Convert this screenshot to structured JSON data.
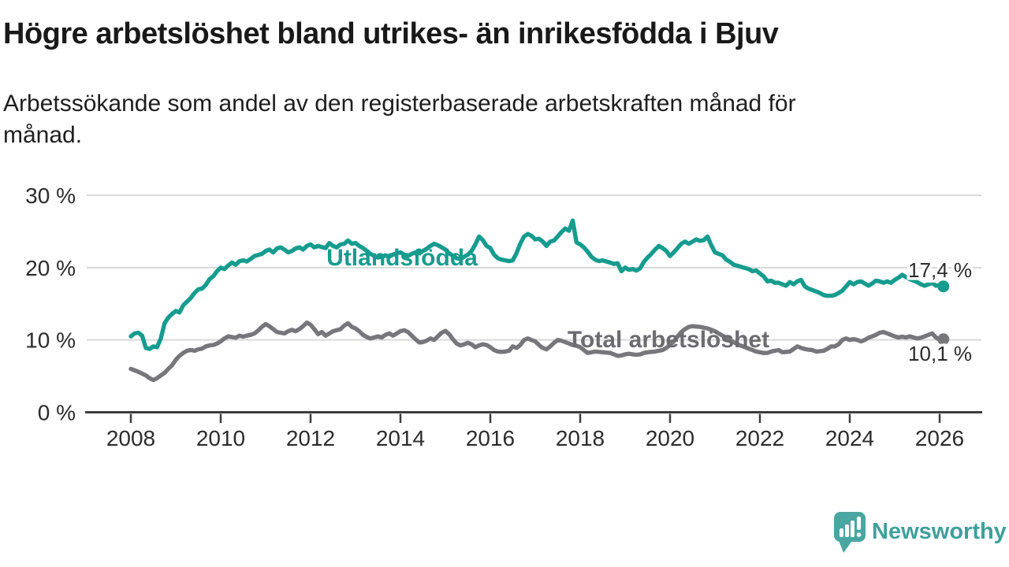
{
  "chart_data": {
    "type": "line",
    "title": "Högre arbetslöshet bland utrikes- än inrikesfödda i Bjuv",
    "subtitle_lines": [
      "Arbetssökande som andel av den registerbaserade arbetskraften månad för",
      "månad."
    ],
    "x_start": 2008.0,
    "x_step_months": 1,
    "x_end_approx": 2026.08,
    "x_ticks": [
      2008,
      2010,
      2012,
      2014,
      2016,
      2018,
      2020,
      2022,
      2024,
      2026
    ],
    "y_ticks": [
      {
        "value": 30,
        "label": "30 %"
      },
      {
        "value": 20,
        "label": "20 %"
      },
      {
        "value": 10,
        "label": "10 %"
      },
      {
        "value": 0,
        "label": "0 %"
      }
    ],
    "ylim": [
      0,
      30
    ],
    "grid": "horizontal-only",
    "legend_position": "inline-labels-on-lines",
    "colors": {
      "grid": "#d9d9d9",
      "axis": "#3d3d3d",
      "tick_label": "#2c2c2c",
      "value_label": "#2b2b2b"
    },
    "series": [
      {
        "name": "Utlandsfödda",
        "label": "Utlandsfödda",
        "color": "#169c8e",
        "label_color": "#169c8e",
        "end_label": "17,4 %",
        "end_value": 17.4,
        "values": [
          10.5,
          10.9,
          11.0,
          10.6,
          8.9,
          8.75,
          9.1,
          9.0,
          10.2,
          12.3,
          13.1,
          13.6,
          14.0,
          13.8,
          14.8,
          15.3,
          15.8,
          16.5,
          17.0,
          17.1,
          17.6,
          18.4,
          18.8,
          19.5,
          20.0,
          19.8,
          20.3,
          20.7,
          20.4,
          20.9,
          21.0,
          20.85,
          21.2,
          21.6,
          21.75,
          21.9,
          22.3,
          22.5,
          22.1,
          22.65,
          22.8,
          22.5,
          22.1,
          22.3,
          22.65,
          22.8,
          22.5,
          23.0,
          23.2,
          22.8,
          23.0,
          22.85,
          22.7,
          23.4,
          23.0,
          22.8,
          23.2,
          23.3,
          23.75,
          23.3,
          23.4,
          23.0,
          22.7,
          22.3,
          21.9,
          21.6,
          21.4,
          21.5,
          21.7,
          21.5,
          21.8,
          22.0,
          22.1,
          21.8,
          21.6,
          21.9,
          22.1,
          22.0,
          22.3,
          22.6,
          23.0,
          23.3,
          23.1,
          22.8,
          22.5,
          22.0,
          21.6,
          21.3,
          21.2,
          21.5,
          21.8,
          22.3,
          23.2,
          24.3,
          23.8,
          23.0,
          22.7,
          21.8,
          21.3,
          21.1,
          21.0,
          20.9,
          21.0,
          22.0,
          23.3,
          24.3,
          24.65,
          24.4,
          23.9,
          24.0,
          23.6,
          23.0,
          23.6,
          23.75,
          24.3,
          24.9,
          25.4,
          25.1,
          26.5,
          23.5,
          23.2,
          22.8,
          22.2,
          21.5,
          21.1,
          20.9,
          21.0,
          20.85,
          20.7,
          20.5,
          20.6,
          19.5,
          20.0,
          19.7,
          19.8,
          19.6,
          19.9,
          20.8,
          21.4,
          21.9,
          22.5,
          23.0,
          22.7,
          22.3,
          21.6,
          22.1,
          22.7,
          23.3,
          23.6,
          23.3,
          23.6,
          23.9,
          23.7,
          23.8,
          24.3,
          23.1,
          22.1,
          21.9,
          21.7,
          21.1,
          20.8,
          20.4,
          20.25,
          20.1,
          19.95,
          19.8,
          19.5,
          19.6,
          19.2,
          18.8,
          18.1,
          18.2,
          17.9,
          17.9,
          17.7,
          17.5,
          18.0,
          17.7,
          18.1,
          18.3,
          17.4,
          17.1,
          16.9,
          16.7,
          16.5,
          16.2,
          16.1,
          16.1,
          16.2,
          16.5,
          16.8,
          17.4,
          18.0,
          17.7,
          18.0,
          18.1,
          17.8,
          17.5,
          17.8,
          18.2,
          18.1,
          17.9,
          18.1,
          17.9,
          18.3,
          18.6,
          19.0,
          18.7,
          18.4,
          18.2,
          18.0,
          17.7,
          17.5,
          17.7,
          17.9,
          17.5,
          17.6,
          17.4
        ]
      },
      {
        "name": "Total arbetslöshet",
        "label": "Total arbetslöshet",
        "color": "#77777b",
        "label_color": "#6b6b70",
        "end_label": "10,1 %",
        "end_value": 10.1,
        "values": [
          6.0,
          5.8,
          5.6,
          5.35,
          5.1,
          4.7,
          4.45,
          4.7,
          5.1,
          5.45,
          6.0,
          6.5,
          7.25,
          7.8,
          8.2,
          8.5,
          8.6,
          8.5,
          8.7,
          8.8,
          9.1,
          9.25,
          9.3,
          9.5,
          9.8,
          10.2,
          10.5,
          10.4,
          10.3,
          10.6,
          10.45,
          10.6,
          10.7,
          10.9,
          11.3,
          11.8,
          12.2,
          11.9,
          11.5,
          11.1,
          11.0,
          10.9,
          11.2,
          11.4,
          11.2,
          11.5,
          11.9,
          12.4,
          12.1,
          11.5,
          10.8,
          11.1,
          10.6,
          10.9,
          11.2,
          11.35,
          11.5,
          12.0,
          12.3,
          11.8,
          11.6,
          11.2,
          10.7,
          10.4,
          10.2,
          10.35,
          10.5,
          10.35,
          10.7,
          10.9,
          10.6,
          10.9,
          11.2,
          11.35,
          11.1,
          10.6,
          10.1,
          9.65,
          9.7,
          9.9,
          10.2,
          10.0,
          10.5,
          11.0,
          11.25,
          10.8,
          10.1,
          9.5,
          9.25,
          9.4,
          9.6,
          9.4,
          9.0,
          9.25,
          9.4,
          9.3,
          9.0,
          8.6,
          8.4,
          8.35,
          8.4,
          8.5,
          9.1,
          8.9,
          9.3,
          10.0,
          10.2,
          10.0,
          9.8,
          9.3,
          8.9,
          8.7,
          9.1,
          9.6,
          10.0,
          9.9,
          9.7,
          9.5,
          9.3,
          9.2,
          9.0,
          8.6,
          8.2,
          8.3,
          8.4,
          8.35,
          8.3,
          8.25,
          8.2,
          8.0,
          7.8,
          7.85,
          8.0,
          8.1,
          8.0,
          7.95,
          8.0,
          8.2,
          8.3,
          8.35,
          8.4,
          8.5,
          8.6,
          8.9,
          9.3,
          9.8,
          10.5,
          11.1,
          11.5,
          11.8,
          11.9,
          11.85,
          11.8,
          11.7,
          11.6,
          11.4,
          11.2,
          10.9,
          10.6,
          10.3,
          10.0,
          9.7,
          9.4,
          9.2,
          9.0,
          8.8,
          8.6,
          8.4,
          8.3,
          8.2,
          8.2,
          8.4,
          8.5,
          8.6,
          8.3,
          8.35,
          8.4,
          8.75,
          9.1,
          8.9,
          8.75,
          8.65,
          8.6,
          8.4,
          8.45,
          8.5,
          8.75,
          9.1,
          9.1,
          9.4,
          10.0,
          10.2,
          10.0,
          10.1,
          10.0,
          9.8,
          10.0,
          10.3,
          10.5,
          10.7,
          11.0,
          11.1,
          10.9,
          10.7,
          10.5,
          10.35,
          10.45,
          10.35,
          10.5,
          10.35,
          10.2,
          10.3,
          10.5,
          10.7,
          10.9,
          10.35,
          10.0,
          10.1
        ]
      }
    ]
  },
  "logo": {
    "text": "Newsworthy",
    "icon": "speech-bubble-bar-chart-icon",
    "bubble_color": "#4aa6a1",
    "text_color": "#3f9f9b"
  }
}
